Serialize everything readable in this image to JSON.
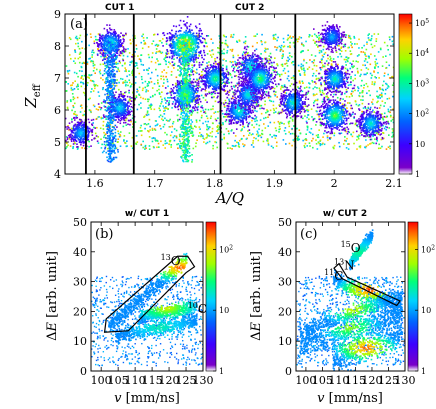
{
  "chart_data": [
    {
      "panel": "(a)",
      "type": "heatmap",
      "xlabel": "A/Q",
      "ylabel": "Z_eff",
      "xlim": [
        1.55,
        2.1
      ],
      "ylim": [
        4,
        9
      ],
      "xticks": [
        "1.6",
        "1.7",
        "1.8",
        "1.9",
        "2",
        "2.1"
      ],
      "xtick_values": [
        1.6,
        1.7,
        1.8,
        1.9,
        2.0,
        2.1
      ],
      "yticks": [
        "4",
        "5",
        "6",
        "7",
        "8",
        "9"
      ],
      "ytick_values": [
        4,
        5,
        6,
        7,
        8,
        9
      ],
      "colorbar": {
        "scale": "log",
        "ticks": [
          "1",
          "10",
          "10^2",
          "10^3",
          "10^4",
          "10^5"
        ],
        "tick_values": [
          1,
          10,
          100,
          1000,
          10000,
          100000
        ]
      },
      "cuts": [
        {
          "label": "CUT 1",
          "xrange": [
            1.585,
            1.665
          ],
          "yrange": [
            4,
            9
          ]
        },
        {
          "label": "CUT 2",
          "xrange": [
            1.81,
            1.935
          ],
          "yrange": [
            4,
            9
          ]
        }
      ],
      "vertical_lines": [
        1.585,
        1.665,
        1.81,
        1.935
      ],
      "clusters": [
        {
          "x": 1.625,
          "y": 8.1,
          "level": 3.2
        },
        {
          "x": 1.575,
          "y": 5.3,
          "level": 2.6
        },
        {
          "x": 1.64,
          "y": 6.1,
          "level": 2.8
        },
        {
          "x": 1.75,
          "y": 8.05,
          "level": 5.2
        },
        {
          "x": 1.75,
          "y": 6.5,
          "level": 3.8
        },
        {
          "x": 1.8,
          "y": 7.0,
          "level": 3.4
        },
        {
          "x": 1.84,
          "y": 6.0,
          "level": 3.2
        },
        {
          "x": 1.855,
          "y": 6.5,
          "level": 3.0
        },
        {
          "x": 1.86,
          "y": 7.35,
          "level": 3.1
        },
        {
          "x": 1.875,
          "y": 7.0,
          "level": 3.6
        },
        {
          "x": 1.93,
          "y": 6.25,
          "level": 3.0
        },
        {
          "x": 2.0,
          "y": 5.85,
          "level": 3.8
        },
        {
          "x": 2.0,
          "y": 7.0,
          "level": 3.1
        },
        {
          "x": 1.995,
          "y": 8.3,
          "level": 2.4
        },
        {
          "x": 2.06,
          "y": 5.6,
          "level": 3.0
        }
      ]
    },
    {
      "panel": "(b)",
      "type": "heatmap",
      "title": "w/ CUT 1",
      "xlabel": "v [mm/ns]",
      "ylabel": "ΔE [arb. unit]",
      "xlim": [
        97,
        130
      ],
      "ylim": [
        0,
        50
      ],
      "xticks": [
        "100",
        "105",
        "110",
        "115",
        "120",
        "125",
        "130"
      ],
      "xtick_values": [
        100,
        105,
        110,
        115,
        120,
        125,
        130
      ],
      "yticks": [
        "0",
        "10",
        "20",
        "30",
        "40",
        "50"
      ],
      "ytick_values": [
        0,
        10,
        20,
        30,
        40,
        50
      ],
      "colorbar": {
        "scale": "log",
        "ticks": [
          "1",
          "10",
          "10^2"
        ],
        "tick_values": [
          1,
          10,
          100
        ]
      },
      "annotations": [
        {
          "text": "13O",
          "mass": "13",
          "element": "O",
          "x": 117.5,
          "y": 35.5
        },
        {
          "text": "10C",
          "mass": "10",
          "element": "C",
          "x": 125.5,
          "y": 19.5
        }
      ],
      "gate_polygon": [
        [
          101,
          13
        ],
        [
          101.5,
          17.5
        ],
        [
          122.5,
          38.5
        ],
        [
          125.5,
          38.5
        ],
        [
          127.5,
          35
        ],
        [
          125,
          33
        ],
        [
          108,
          13.5
        ]
      ],
      "bands": [
        {
          "from": [
            102,
            15.5
          ],
          "to": [
            125,
            37.5
          ],
          "width": 1.3,
          "peak": [
            123,
            35
          ],
          "level": 2.3
        },
        {
          "from": [
            111,
            18
          ],
          "to": [
            128,
            22
          ],
          "width": 1.1,
          "peak": [
            119,
            21.5
          ],
          "level": 1.6
        },
        {
          "from": [
            104,
            12
          ],
          "to": [
            128,
            17
          ],
          "width": 1.2,
          "peak": [
            117,
            15
          ],
          "level": 0.7
        }
      ]
    },
    {
      "panel": "(c)",
      "type": "heatmap",
      "title": "w/ CUT 2",
      "xlabel": "v [mm/ns]",
      "ylabel": "ΔE [arb. unit]",
      "xlim": [
        97,
        130
      ],
      "ylim": [
        0,
        50
      ],
      "xticks": [
        "100",
        "105",
        "110",
        "115",
        "120",
        "125",
        "130"
      ],
      "xtick_values": [
        100,
        105,
        110,
        115,
        120,
        125,
        130
      ],
      "yticks": [
        "0",
        "10",
        "20",
        "30",
        "40",
        "50"
      ],
      "ytick_values": [
        0,
        10,
        20,
        30,
        40,
        50
      ],
      "colorbar": {
        "scale": "log",
        "ticks": [
          "1",
          "10",
          "10^2"
        ],
        "tick_values": [
          1,
          10,
          100
        ]
      },
      "annotations": [
        {
          "text": "15O",
          "mass": "15",
          "element": "O",
          "x": 110.5,
          "y": 40
        },
        {
          "text": "13N",
          "mass": "13",
          "element": "N",
          "x": 108.5,
          "y": 34
        },
        {
          "text": "11C",
          "mass": "11",
          "element": "C",
          "x": 105.5,
          "y": 30.5
        }
      ],
      "gate_polygon": [
        [
          108.5,
          34.5
        ],
        [
          111,
          31
        ],
        [
          127.5,
          22
        ],
        [
          128.5,
          23.5
        ],
        [
          124.5,
          25.5
        ],
        [
          112.5,
          31.5
        ],
        [
          110,
          36
        ]
      ],
      "bands": [
        {
          "from": [
            108,
            31
          ],
          "to": [
            129,
            21
          ],
          "width": 1.4,
          "peak": [
            119,
            27.5
          ],
          "level": 2.4
        },
        {
          "from": [
            98,
            13
          ],
          "to": [
            129,
            26
          ],
          "width": 1.5,
          "peak": [
            114,
            21
          ],
          "level": 1.6
        },
        {
          "from": [
            98,
            8
          ],
          "to": [
            129,
            20
          ],
          "width": 1.8,
          "peak": [
            113,
            15
          ],
          "level": 1.4
        },
        {
          "from": [
            108,
            4
          ],
          "to": [
            129,
            13
          ],
          "width": 2.5,
          "peak": [
            118,
            8
          ],
          "level": 2.3
        },
        {
          "from": [
            113,
            36
          ],
          "to": [
            120,
            46
          ],
          "width": 0.9,
          "peak": [
            116,
            40
          ],
          "level": 0.8
        }
      ]
    }
  ]
}
